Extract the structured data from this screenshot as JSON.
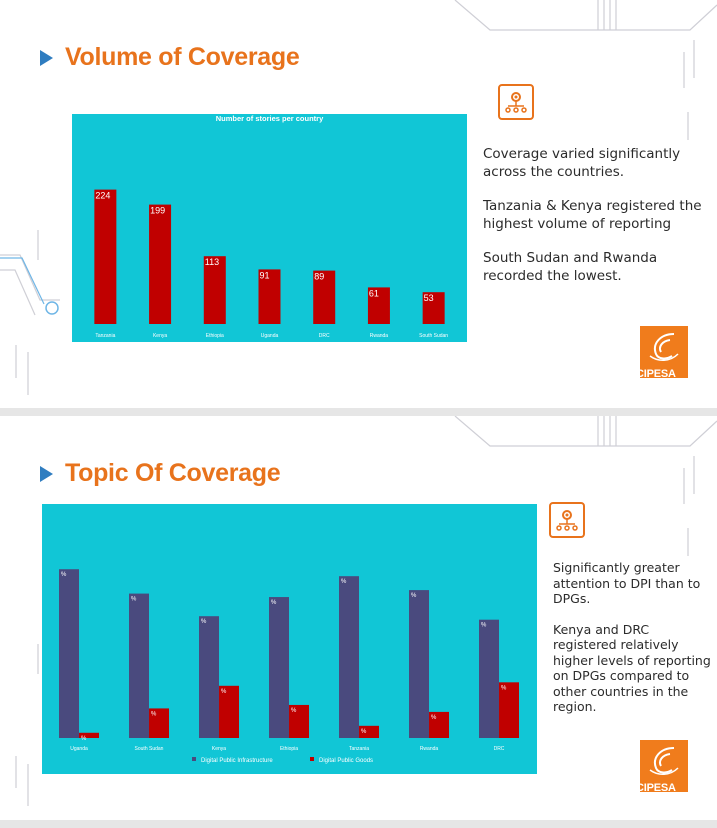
{
  "slide1": {
    "title": "Volume of Coverage",
    "chart_data": {
      "type": "bar",
      "title": "Number of stories per country",
      "categories": [
        "Tanzania",
        "Kenya",
        "Ethiopia",
        "Uganda",
        "DRC",
        "Rwanda",
        "South Sudan"
      ],
      "values": [
        224,
        199,
        113,
        91,
        89,
        61,
        53
      ],
      "ylim": [
        0,
        250
      ],
      "bar_color": "#c00000",
      "background_color": "#11c6d6"
    },
    "paragraphs": [
      "Coverage varied significantly across the countries.",
      "Tanzania & Kenya registered the highest volume of reporting",
      "South Sudan and Rwanda recorded the lowest."
    ],
    "logo_text": "CIPESA",
    "icon": "gear-network-icon"
  },
  "slide2": {
    "title": "Topic Of Coverage",
    "chart_data": {
      "type": "bar",
      "categories": [
        "Uganda",
        "South Sudan",
        "Kenya",
        "Ethiopia",
        "Tanzania",
        "Rwanda",
        "DRC"
      ],
      "series": [
        {
          "name": "Digital Public Infrastructure",
          "values": [
            97,
            83,
            70,
            81,
            93,
            85,
            68
          ],
          "color": "#4a4a7e"
        },
        {
          "name": "Digital Public Goods",
          "values": [
            3,
            17,
            30,
            19,
            7,
            15,
            32
          ],
          "color": "#c00000"
        }
      ],
      "point_label": "%",
      "ylim": [
        0,
        100
      ],
      "legend_position": "bottom",
      "background_color": "#11c6d6"
    },
    "paragraphs": [
      "Significantly greater attention to DPI than to DPGs.",
      "Kenya and DRC registered relatively higher levels of reporting on DPGs compared to other countries in the region."
    ],
    "logo_text": "CIPESA",
    "icon": "gear-network-icon"
  }
}
